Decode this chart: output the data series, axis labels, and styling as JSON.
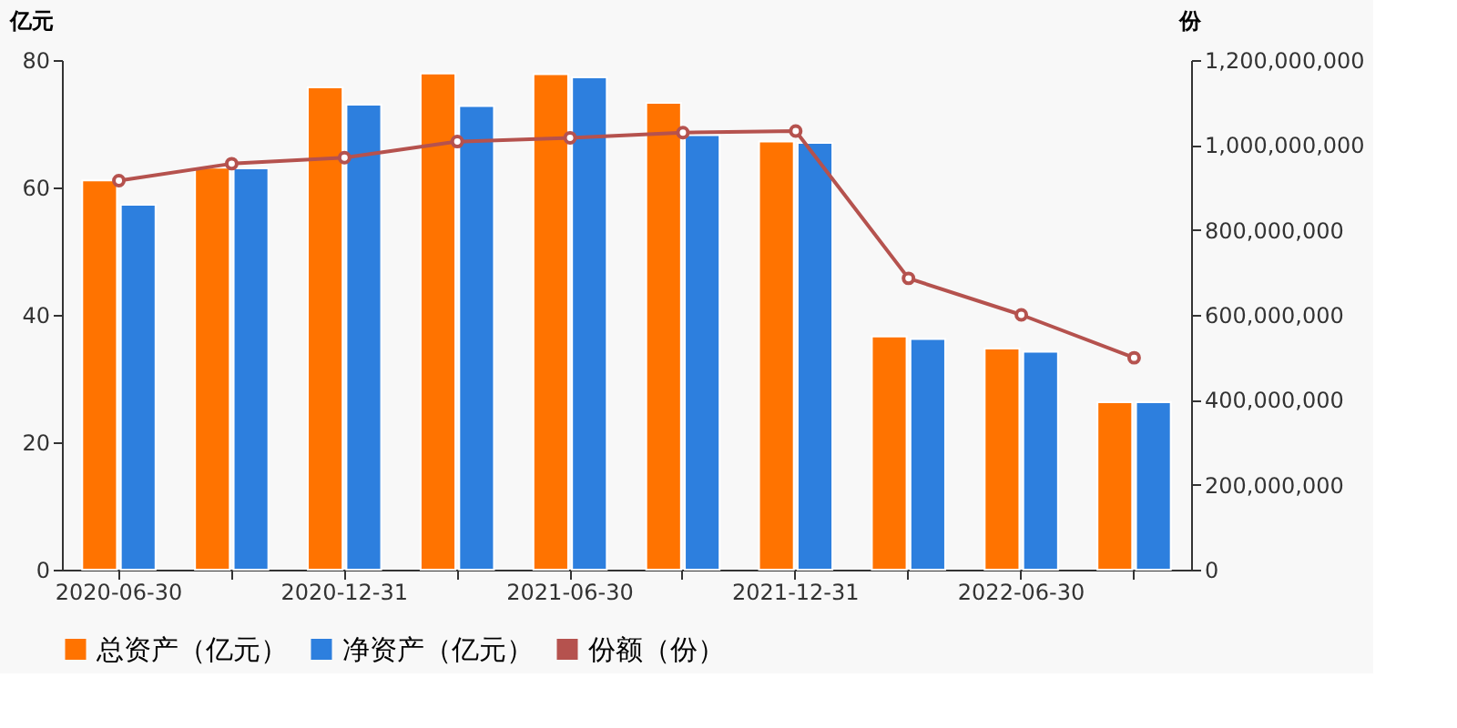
{
  "chart_data": {
    "type": "bar",
    "ylabel": "亿元",
    "y2label": "份",
    "categories": [
      "2020-06-30",
      null,
      "2020-12-31",
      null,
      "2021-06-30",
      null,
      "2021-12-31",
      null,
      "2022-06-30",
      null
    ],
    "series": [
      {
        "name": "总资产（亿元）",
        "color": "#ff7300",
        "values": [
          61.1,
          63.1,
          75.7,
          77.9,
          77.8,
          73.3,
          67.2,
          36.6,
          34.7,
          26.3
        ]
      },
      {
        "name": "净资产（亿元）",
        "color": "#2d7fde",
        "values": [
          57.3,
          63.0,
          73.0,
          72.8,
          77.3,
          68.2,
          67.0,
          36.2,
          34.2,
          26.3
        ]
      },
      {
        "name": "份额（份）",
        "type": "line",
        "axis": "y2",
        "color": "#b5524e",
        "marker": "circle",
        "values": [
          916000000,
          956000000,
          970000000,
          1008000000,
          1017000000,
          1029000000,
          1033000000,
          686000000,
          600000000,
          499000000
        ]
      }
    ],
    "ylim": [
      0,
      80
    ],
    "yticks": [
      0,
      20,
      40,
      60,
      80
    ],
    "y2lim": [
      0,
      1200000000
    ],
    "y2ticks": [
      {
        "value": 0,
        "label": "0"
      },
      {
        "value": 200000000,
        "label": "200,000,000"
      },
      {
        "value": 400000000,
        "label": "400,000,000"
      },
      {
        "value": 600000000,
        "label": "600,000,000"
      },
      {
        "value": 800000000,
        "label": "800,000,000"
      },
      {
        "value": 1000000000,
        "label": "1,000,000,000"
      },
      {
        "value": 1200000000,
        "label": "1,200,000,000"
      }
    ],
    "grid": false,
    "legend": "bottom"
  }
}
